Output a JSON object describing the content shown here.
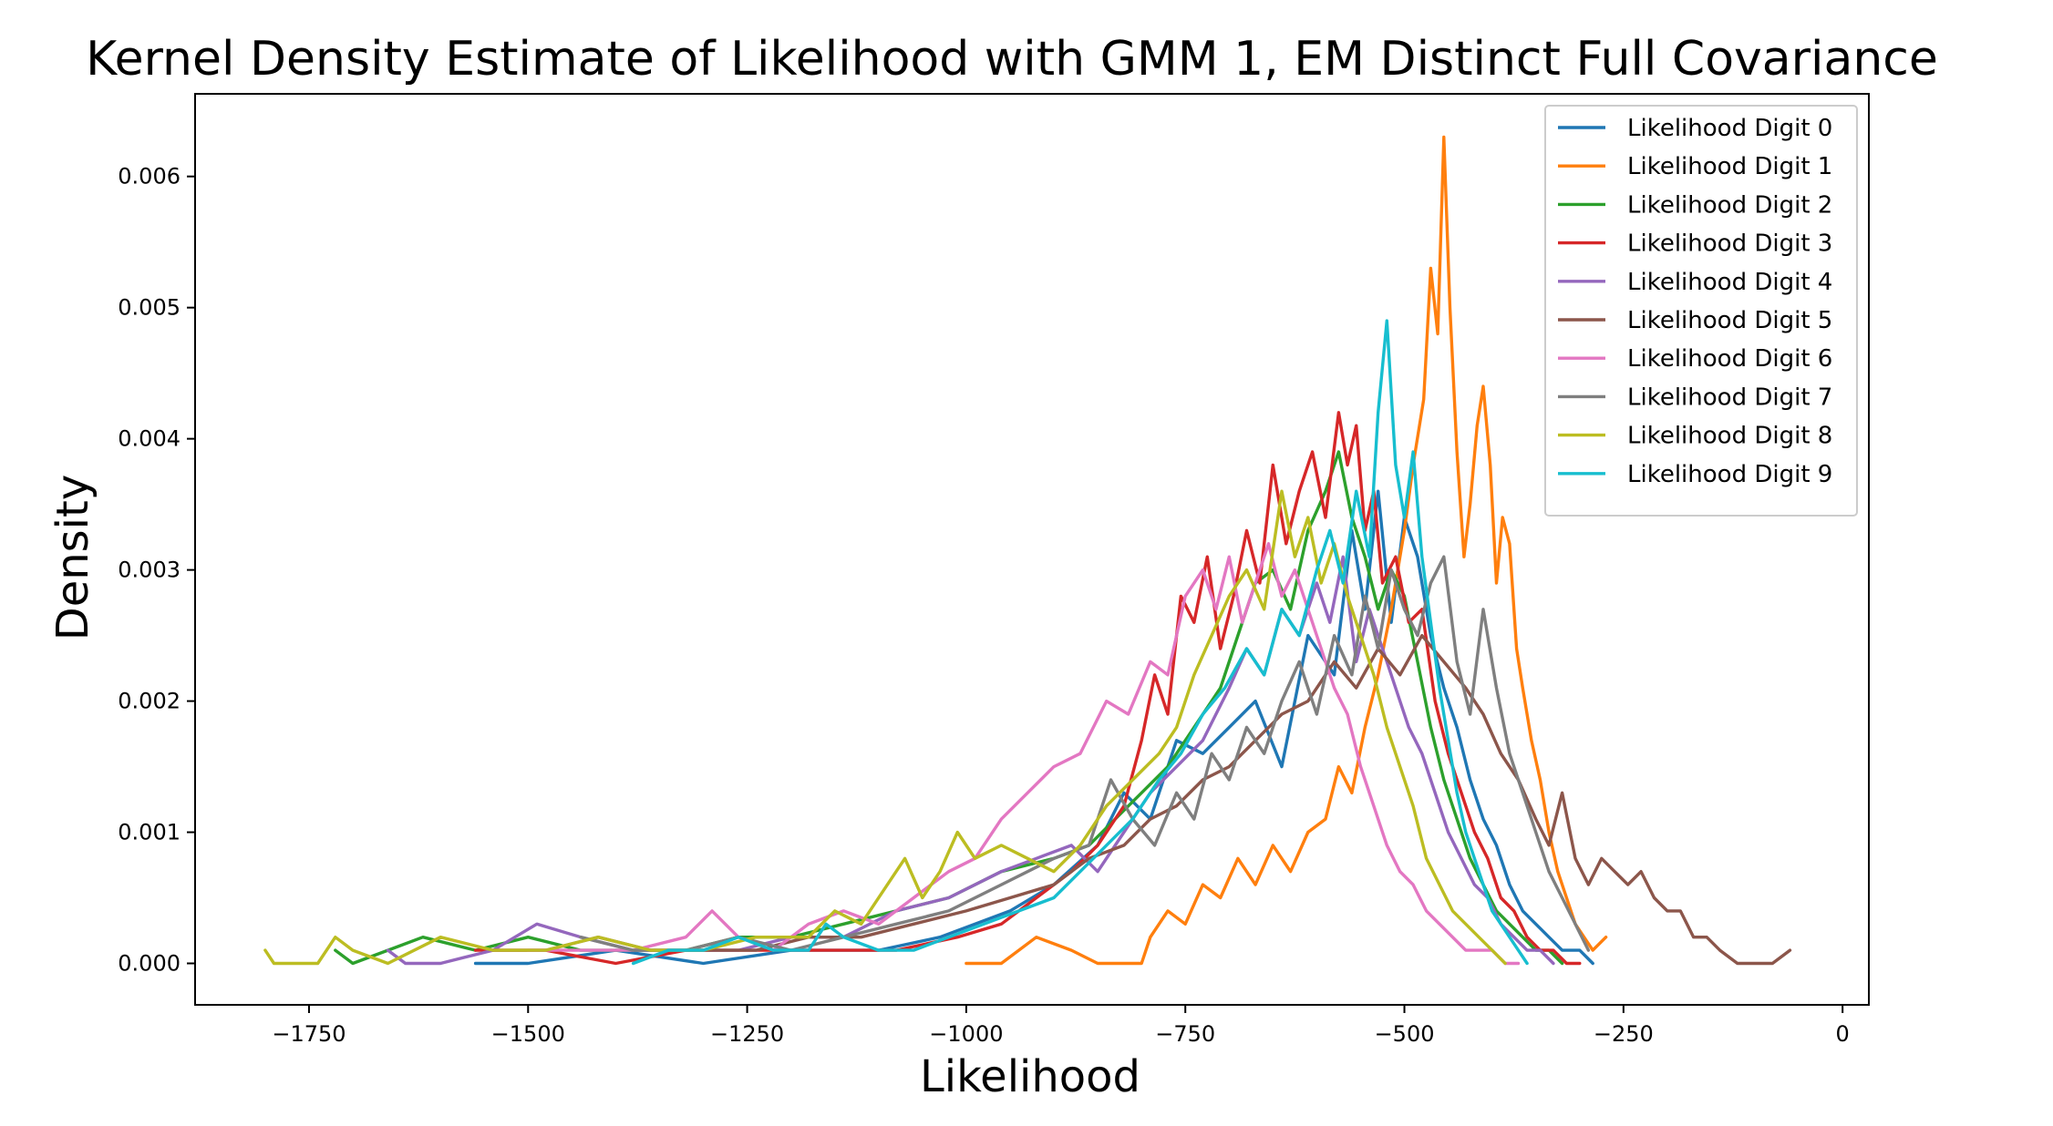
{
  "chart_data": {
    "type": "line",
    "title": "Kernel Density Estimate of Likelihood with GMM 1, EM Distinct Full Covariance",
    "xlabel": "Likelihood",
    "ylabel": "Density",
    "xlim": [
      -1880,
      30
    ],
    "ylim": [
      -0.000316,
      0.00663
    ],
    "xticks": [
      -1750,
      -1500,
      -1250,
      -1000,
      -750,
      -500,
      -250,
      0
    ],
    "xtick_labels": [
      "−1750",
      "−1500",
      "−1250",
      "−1000",
      "−750",
      "−500",
      "−250",
      "0"
    ],
    "yticks": [
      0.0,
      0.001,
      0.002,
      0.003,
      0.004,
      0.005,
      0.006
    ],
    "ytick_labels": [
      "0.000",
      "0.001",
      "0.002",
      "0.003",
      "0.004",
      "0.005",
      "0.006"
    ],
    "grid": false,
    "legend_position": "top-right",
    "series": [
      {
        "name": "Likelihood Digit 0",
        "color": "#1f77b4",
        "x": [
          -1560,
          -1500,
          -1400,
          -1300,
          -1200,
          -1100,
          -1030,
          -950,
          -900,
          -850,
          -820,
          -790,
          -760,
          -730,
          -700,
          -670,
          -640,
          -610,
          -580,
          -560,
          -545,
          -530,
          -515,
          -500,
          -485,
          -470,
          -455,
          -440,
          -425,
          -410,
          -395,
          -380,
          -365,
          -350,
          -335,
          -320,
          -300,
          -285
        ],
        "y": [
          0.0,
          0.0,
          0.0001,
          0.0,
          0.0001,
          0.0001,
          0.0002,
          0.0004,
          0.0006,
          0.0009,
          0.0013,
          0.0011,
          0.0017,
          0.0016,
          0.0018,
          0.002,
          0.0015,
          0.0025,
          0.0022,
          0.0033,
          0.0027,
          0.0036,
          0.0026,
          0.0034,
          0.0031,
          0.0025,
          0.0021,
          0.0018,
          0.0014,
          0.0011,
          0.0009,
          0.0006,
          0.0004,
          0.0003,
          0.0002,
          0.0001,
          0.0001,
          0.0
        ]
      },
      {
        "name": "Likelihood Digit 1",
        "color": "#ff7f0e",
        "x": [
          -1000,
          -960,
          -920,
          -880,
          -850,
          -820,
          -800,
          -790,
          -770,
          -750,
          -730,
          -710,
          -690,
          -670,
          -650,
          -630,
          -610,
          -590,
          -575,
          -560,
          -545,
          -530,
          -515,
          -500,
          -490,
          -478,
          -470,
          -462,
          -455,
          -448,
          -440,
          -432,
          -425,
          -417,
          -410,
          -402,
          -395,
          -388,
          -380,
          -372,
          -365,
          -355,
          -345,
          -335,
          -325,
          -315,
          -305,
          -295,
          -285,
          -270
        ],
        "y": [
          0.0,
          0.0,
          0.0002,
          0.0001,
          0.0,
          0.0,
          0.0,
          0.0002,
          0.0004,
          0.0003,
          0.0006,
          0.0005,
          0.0008,
          0.0006,
          0.0009,
          0.0007,
          0.001,
          0.0011,
          0.0015,
          0.0013,
          0.0018,
          0.0022,
          0.0027,
          0.0033,
          0.0038,
          0.0043,
          0.0053,
          0.0048,
          0.0063,
          0.005,
          0.0039,
          0.0031,
          0.0035,
          0.0041,
          0.0044,
          0.0038,
          0.0029,
          0.0034,
          0.0032,
          0.0024,
          0.0021,
          0.0017,
          0.0014,
          0.001,
          0.0007,
          0.0005,
          0.0003,
          0.0002,
          0.0001,
          0.0002
        ]
      },
      {
        "name": "Likelihood Digit 2",
        "color": "#2ca02c",
        "x": [
          -1720,
          -1700,
          -1660,
          -1620,
          -1560,
          -1500,
          -1440,
          -1380,
          -1320,
          -1260,
          -1200,
          -1140,
          -1080,
          -1020,
          -960,
          -900,
          -860,
          -830,
          -800,
          -770,
          -740,
          -710,
          -690,
          -670,
          -650,
          -630,
          -610,
          -590,
          -575,
          -560,
          -545,
          -530,
          -515,
          -500,
          -485,
          -470,
          -455,
          -440,
          -425,
          -410,
          -395,
          -380,
          -365,
          -350,
          -335,
          -320
        ],
        "y": [
          0.0001,
          0.0,
          0.0001,
          0.0002,
          0.0001,
          0.0002,
          0.0001,
          0.0001,
          0.0001,
          0.0002,
          0.0002,
          0.0003,
          0.0004,
          0.0005,
          0.0007,
          0.0008,
          0.0009,
          0.0011,
          0.0013,
          0.0015,
          0.0018,
          0.0021,
          0.0025,
          0.0029,
          0.003,
          0.0027,
          0.0033,
          0.0036,
          0.0039,
          0.0034,
          0.0031,
          0.0027,
          0.003,
          0.0028,
          0.0023,
          0.0018,
          0.0014,
          0.0011,
          0.0008,
          0.0006,
          0.0004,
          0.0003,
          0.0002,
          0.0001,
          0.0001,
          0.0
        ]
      },
      {
        "name": "Likelihood Digit 3",
        "color": "#d62728",
        "x": [
          -1560,
          -1480,
          -1400,
          -1320,
          -1240,
          -1160,
          -1080,
          -1010,
          -960,
          -920,
          -880,
          -850,
          -820,
          -800,
          -785,
          -770,
          -755,
          -740,
          -725,
          -710,
          -695,
          -680,
          -665,
          -650,
          -635,
          -620,
          -605,
          -590,
          -575,
          -565,
          -555,
          -545,
          -535,
          -525,
          -510,
          -495,
          -480,
          -465,
          -450,
          -435,
          -420,
          -405,
          -390,
          -375,
          -360,
          -345,
          -330,
          -315,
          -300
        ],
        "y": [
          0.0001,
          0.0001,
          0.0,
          0.0001,
          0.0001,
          0.0001,
          0.0001,
          0.0002,
          0.0003,
          0.0005,
          0.0007,
          0.0009,
          0.0012,
          0.0017,
          0.0022,
          0.0019,
          0.0028,
          0.0026,
          0.0031,
          0.0024,
          0.0028,
          0.0033,
          0.0029,
          0.0038,
          0.0032,
          0.0036,
          0.0039,
          0.0034,
          0.0042,
          0.0038,
          0.0041,
          0.0033,
          0.0036,
          0.0029,
          0.0031,
          0.0026,
          0.0027,
          0.002,
          0.0016,
          0.0013,
          0.001,
          0.0008,
          0.0005,
          0.0004,
          0.0002,
          0.0001,
          0.0001,
          0.0,
          0.0
        ]
      },
      {
        "name": "Likelihood Digit 4",
        "color": "#9467bd",
        "x": [
          -1660,
          -1640,
          -1600,
          -1540,
          -1490,
          -1440,
          -1380,
          -1320,
          -1260,
          -1200,
          -1140,
          -1080,
          -1020,
          -960,
          -920,
          -880,
          -850,
          -820,
          -790,
          -760,
          -730,
          -700,
          -680,
          -660,
          -640,
          -620,
          -600,
          -585,
          -570,
          -555,
          -540,
          -525,
          -510,
          -495,
          -480,
          -465,
          -450,
          -435,
          -420,
          -405,
          -390,
          -375,
          -360,
          -345,
          -330
        ],
        "y": [
          0.0001,
          0.0,
          0.0,
          0.0001,
          0.0003,
          0.0002,
          0.0001,
          0.0001,
          0.0001,
          0.0002,
          0.0002,
          0.0004,
          0.0005,
          0.0007,
          0.0008,
          0.0009,
          0.0007,
          0.001,
          0.0013,
          0.0015,
          0.0017,
          0.0021,
          0.0024,
          0.0022,
          0.0027,
          0.0025,
          0.0029,
          0.0026,
          0.0031,
          0.0023,
          0.0027,
          0.0024,
          0.0021,
          0.0018,
          0.0016,
          0.0013,
          0.001,
          0.0008,
          0.0006,
          0.0005,
          0.0003,
          0.0002,
          0.0001,
          0.0001,
          0.0
        ]
      },
      {
        "name": "Likelihood Digit 5",
        "color": "#8c564b",
        "x": [
          -1540,
          -1480,
          -1420,
          -1360,
          -1300,
          -1240,
          -1180,
          -1120,
          -1060,
          -1000,
          -950,
          -900,
          -860,
          -820,
          -790,
          -760,
          -730,
          -700,
          -670,
          -640,
          -610,
          -580,
          -555,
          -530,
          -505,
          -480,
          -455,
          -430,
          -410,
          -390,
          -370,
          -350,
          -335,
          -320,
          -305,
          -290,
          -275,
          -260,
          -245,
          -230,
          -215,
          -200,
          -185,
          -170,
          -155,
          -140,
          -120,
          -100,
          -80,
          -60
        ],
        "y": [
          0.0001,
          0.0001,
          0.0002,
          0.0001,
          0.0001,
          0.0001,
          0.0002,
          0.0002,
          0.0003,
          0.0004,
          0.0005,
          0.0006,
          0.0008,
          0.0009,
          0.0011,
          0.0012,
          0.0014,
          0.0015,
          0.0017,
          0.0019,
          0.002,
          0.0023,
          0.0021,
          0.0024,
          0.0022,
          0.0025,
          0.0023,
          0.0021,
          0.0019,
          0.0016,
          0.0014,
          0.0011,
          0.0009,
          0.0013,
          0.0008,
          0.0006,
          0.0008,
          0.0007,
          0.0006,
          0.0007,
          0.0005,
          0.0004,
          0.0004,
          0.0002,
          0.0002,
          0.0001,
          0.0,
          0.0,
          0.0,
          0.0001
        ]
      },
      {
        "name": "Likelihood Digit 6",
        "color": "#e377c2",
        "x": [
          -1500,
          -1440,
          -1380,
          -1320,
          -1290,
          -1260,
          -1220,
          -1180,
          -1140,
          -1100,
          -1060,
          -1020,
          -990,
          -960,
          -930,
          -900,
          -870,
          -840,
          -815,
          -790,
          -770,
          -750,
          -730,
          -715,
          -700,
          -685,
          -670,
          -655,
          -640,
          -625,
          -610,
          -595,
          -580,
          -565,
          -550,
          -535,
          -520,
          -505,
          -490,
          -475,
          -460,
          -445,
          -430,
          -415,
          -400,
          -385,
          -370
        ],
        "y": [
          0.0001,
          0.0001,
          0.0001,
          0.0002,
          0.0004,
          0.0002,
          0.0001,
          0.0003,
          0.0004,
          0.0003,
          0.0005,
          0.0007,
          0.0008,
          0.0011,
          0.0013,
          0.0015,
          0.0016,
          0.002,
          0.0019,
          0.0023,
          0.0022,
          0.0028,
          0.003,
          0.0027,
          0.0031,
          0.0026,
          0.0029,
          0.0032,
          0.0028,
          0.003,
          0.0027,
          0.0024,
          0.0021,
          0.0019,
          0.0015,
          0.0012,
          0.0009,
          0.0007,
          0.0006,
          0.0004,
          0.0003,
          0.0002,
          0.0001,
          0.0001,
          0.0001,
          0.0,
          0.0
        ]
      },
      {
        "name": "Likelihood Digit 7",
        "color": "#7f7f7f",
        "x": [
          -1440,
          -1380,
          -1320,
          -1260,
          -1200,
          -1140,
          -1080,
          -1020,
          -960,
          -900,
          -860,
          -835,
          -810,
          -785,
          -760,
          -740,
          -720,
          -700,
          -680,
          -660,
          -640,
          -620,
          -600,
          -580,
          -560,
          -545,
          -530,
          -515,
          -500,
          -485,
          -470,
          -455,
          -440,
          -425,
          -410,
          -395,
          -380,
          -365,
          -350,
          -335,
          -320,
          -305,
          -290
        ],
        "y": [
          0.0002,
          0.0001,
          0.0001,
          0.0002,
          0.0001,
          0.0002,
          0.0003,
          0.0004,
          0.0006,
          0.0008,
          0.0009,
          0.0014,
          0.0011,
          0.0009,
          0.0013,
          0.0011,
          0.0016,
          0.0014,
          0.0018,
          0.0016,
          0.002,
          0.0023,
          0.0019,
          0.0025,
          0.0022,
          0.0028,
          0.0024,
          0.003,
          0.0027,
          0.0025,
          0.0029,
          0.0031,
          0.0023,
          0.0019,
          0.0027,
          0.0021,
          0.0016,
          0.0013,
          0.001,
          0.0007,
          0.0005,
          0.0003,
          0.0001
        ]
      },
      {
        "name": "Likelihood Digit 8",
        "color": "#bcbd22",
        "x": [
          -1800,
          -1790,
          -1770,
          -1740,
          -1720,
          -1700,
          -1660,
          -1600,
          -1540,
          -1480,
          -1420,
          -1360,
          -1300,
          -1240,
          -1180,
          -1150,
          -1120,
          -1090,
          -1070,
          -1050,
          -1030,
          -1010,
          -990,
          -960,
          -930,
          -900,
          -870,
          -840,
          -810,
          -780,
          -760,
          -740,
          -720,
          -700,
          -680,
          -660,
          -640,
          -625,
          -610,
          -595,
          -580,
          -565,
          -550,
          -535,
          -520,
          -505,
          -490,
          -475,
          -460,
          -445,
          -430,
          -415,
          -400,
          -385
        ],
        "y": [
          0.0001,
          0.0,
          0.0,
          0.0,
          0.0002,
          0.0001,
          0.0,
          0.0002,
          0.0001,
          0.0001,
          0.0002,
          0.0001,
          0.0001,
          0.0002,
          0.0002,
          0.0004,
          0.0003,
          0.0006,
          0.0008,
          0.0005,
          0.0007,
          0.001,
          0.0008,
          0.0009,
          0.0008,
          0.0007,
          0.0009,
          0.0012,
          0.0014,
          0.0016,
          0.0018,
          0.0022,
          0.0025,
          0.0028,
          0.003,
          0.0027,
          0.0036,
          0.0031,
          0.0034,
          0.0029,
          0.0032,
          0.0028,
          0.0025,
          0.0022,
          0.0018,
          0.0015,
          0.0012,
          0.0008,
          0.0006,
          0.0004,
          0.0003,
          0.0002,
          0.0001,
          0.0
        ]
      },
      {
        "name": "Likelihood Digit 9",
        "color": "#17becf",
        "x": [
          -1380,
          -1340,
          -1300,
          -1260,
          -1220,
          -1180,
          -1160,
          -1140,
          -1100,
          -1060,
          -1020,
          -980,
          -940,
          -900,
          -870,
          -840,
          -810,
          -780,
          -755,
          -730,
          -705,
          -680,
          -660,
          -640,
          -620,
          -600,
          -585,
          -570,
          -555,
          -540,
          -530,
          -520,
          -510,
          -500,
          -490,
          -480,
          -470,
          -460,
          -450,
          -440,
          -430,
          -420,
          -410,
          -400,
          -390,
          -380,
          -370,
          -360
        ],
        "y": [
          0.0,
          0.0001,
          0.0001,
          0.0002,
          0.0001,
          0.0001,
          0.0003,
          0.0002,
          0.0001,
          0.0001,
          0.0002,
          0.0003,
          0.0004,
          0.0005,
          0.0007,
          0.0009,
          0.0011,
          0.0014,
          0.0016,
          0.0019,
          0.0021,
          0.0024,
          0.0022,
          0.0027,
          0.0025,
          0.003,
          0.0033,
          0.0029,
          0.0036,
          0.0031,
          0.0042,
          0.0049,
          0.0038,
          0.0034,
          0.0039,
          0.0031,
          0.0026,
          0.0021,
          0.0017,
          0.0013,
          0.001,
          0.0008,
          0.0006,
          0.0004,
          0.0003,
          0.0002,
          0.0001,
          0.0
        ]
      }
    ]
  }
}
